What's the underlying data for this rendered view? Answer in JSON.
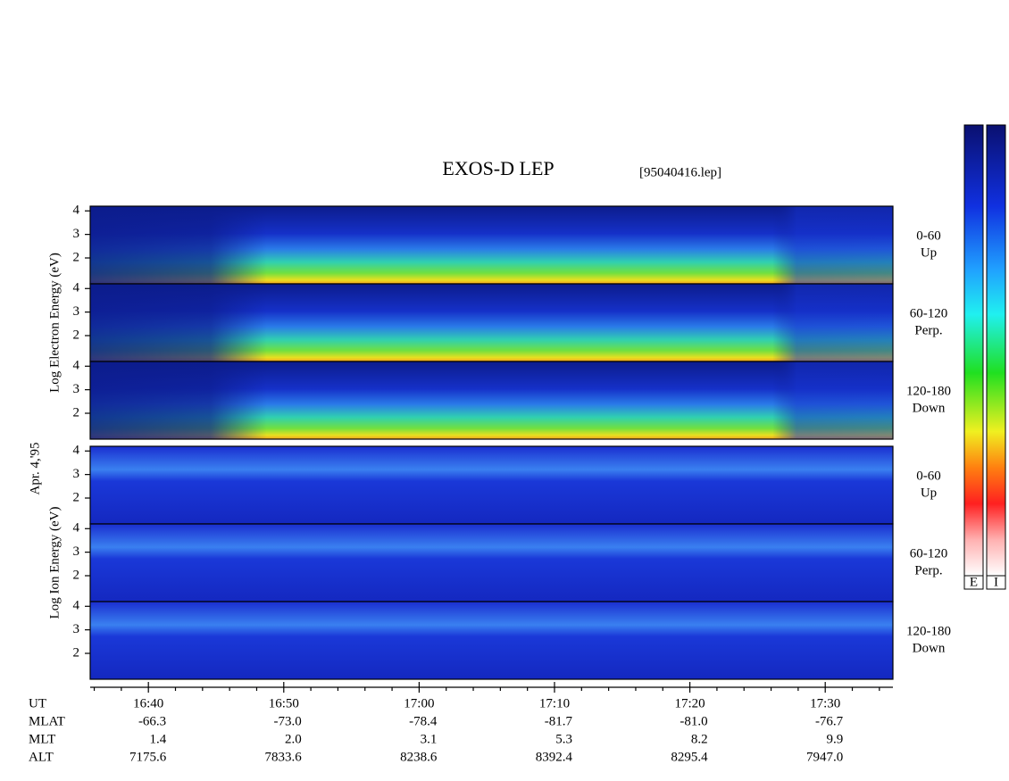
{
  "chart_data": {
    "type": "spectrogram",
    "title": "EXOS-D LEP",
    "subtitle": "[95040416.lep]",
    "date_label": "Apr. 4,'95",
    "groups": [
      {
        "ylabel": "Log  Electron  Energy (eV)",
        "colorbar_label": "E",
        "panels": [
          {
            "channel": "0-60",
            "direction": "Up"
          },
          {
            "channel": "60-120",
            "direction": "Perp."
          },
          {
            "channel": "120-180",
            "direction": "Down"
          }
        ]
      },
      {
        "ylabel": "Log  Ion  Energy (eV)",
        "colorbar_label": "I",
        "panels": [
          {
            "channel": "0-60",
            "direction": "Up"
          },
          {
            "channel": "60-120",
            "direction": "Perp."
          },
          {
            "channel": "120-180",
            "direction": "Down"
          }
        ]
      }
    ],
    "ylim": [
      0.9,
      4.2
    ],
    "yticks": [
      2,
      3,
      4
    ],
    "xlim": [
      35.7,
      95.0
    ],
    "xticks": [
      {
        "value": 40,
        "label": "16:40"
      },
      {
        "value": 50,
        "label": "16:50"
      },
      {
        "value": 60,
        "label": "17:00"
      },
      {
        "value": 70,
        "label": "17:10"
      },
      {
        "value": 80,
        "label": "17:20"
      },
      {
        "value": 90,
        "label": "17:30"
      }
    ],
    "xminorticks": [
      36,
      38,
      42,
      44,
      46,
      48,
      52,
      54,
      56,
      58,
      62,
      64,
      66,
      68,
      72,
      74,
      76,
      78,
      82,
      84,
      86,
      88,
      92,
      94
    ],
    "x_axis_label": "UT",
    "orbit": [
      {
        "label": "MLAT",
        "values": [
          "-66.3",
          "-73.0",
          "-78.4",
          "-81.7",
          "-81.0",
          "-76.7"
        ]
      },
      {
        "label": "MLT",
        "values": [
          "1.4",
          "2.0",
          "3.1",
          "5.3",
          "8.2",
          "9.9"
        ]
      },
      {
        "label": "ALT",
        "values": [
          "7175.6",
          "7833.6",
          "8238.6",
          "8392.4",
          "8295.4",
          "7947.0"
        ]
      }
    ]
  }
}
